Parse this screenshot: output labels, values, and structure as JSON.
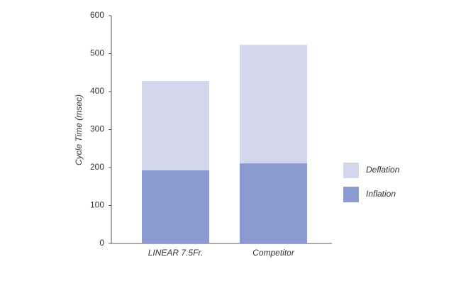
{
  "chart_data": {
    "type": "stacked_bar",
    "y_label": "Cycle Time (msec)",
    "categories": [
      "LINEAR 7.5Fr.",
      "Competitor"
    ],
    "series": [
      {
        "name": "Inflation",
        "color": "#8b9bcf",
        "values": [
          193,
          211
        ]
      },
      {
        "name": "Deflation",
        "color": "#d3d7ec",
        "values": [
          235,
          312
        ]
      }
    ],
    "ylim": [
      0,
      600
    ],
    "yticks": [
      0,
      100,
      200,
      300,
      400,
      500,
      600
    ],
    "legend": "right"
  }
}
